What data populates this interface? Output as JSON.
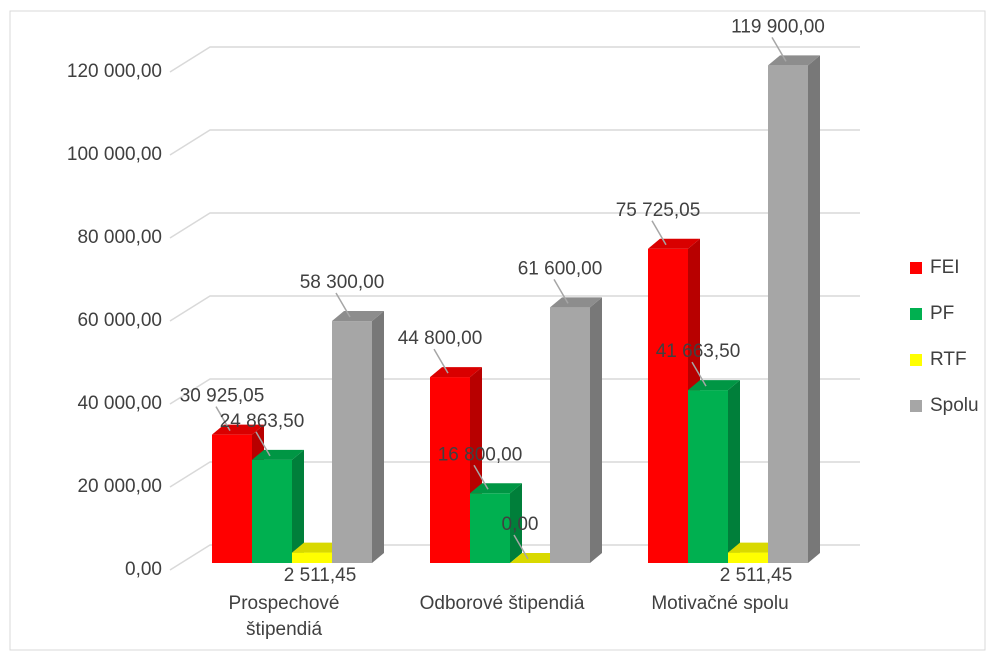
{
  "chart_data": {
    "type": "bar3d",
    "categories": [
      "Prospechové štipendiá",
      "Odborové štipendiá",
      "Motivačné spolu"
    ],
    "series": [
      {
        "name": "FEI",
        "color": "#ff0000",
        "values": [
          30925.05,
          44800,
          75725.05
        ],
        "value_labels": [
          "30 925,05",
          "44 800,00",
          "75 725,05"
        ]
      },
      {
        "name": "PF",
        "color": "#00b050",
        "values": [
          24863.5,
          16800,
          41663.5
        ],
        "value_labels": [
          "24 863,50",
          "16 800,00",
          "41 663,50"
        ]
      },
      {
        "name": "RTF",
        "color": "#ffff00",
        "values": [
          2511.45,
          0,
          2511.45
        ],
        "value_labels": [
          "2 511,45",
          "0,00",
          "2 511,45"
        ]
      },
      {
        "name": "Spolu",
        "color": "#a6a6a6",
        "values": [
          58300,
          61600,
          119900
        ],
        "value_labels": [
          "58 300,00",
          "61 600,00",
          "119 900,00"
        ]
      }
    ],
    "ylim": [
      0,
      120000
    ],
    "yticks": [
      {
        "value": 0,
        "label": "0,00"
      },
      {
        "value": 20000,
        "label": "20 000,00"
      },
      {
        "value": 40000,
        "label": "40 000,00"
      },
      {
        "value": 60000,
        "label": "60 000,00"
      },
      {
        "value": 80000,
        "label": "80 000,00"
      },
      {
        "value": 100000,
        "label": "100 000,00"
      },
      {
        "value": 120000,
        "label": "120 000,00"
      }
    ],
    "grid": true,
    "legend": "right"
  }
}
